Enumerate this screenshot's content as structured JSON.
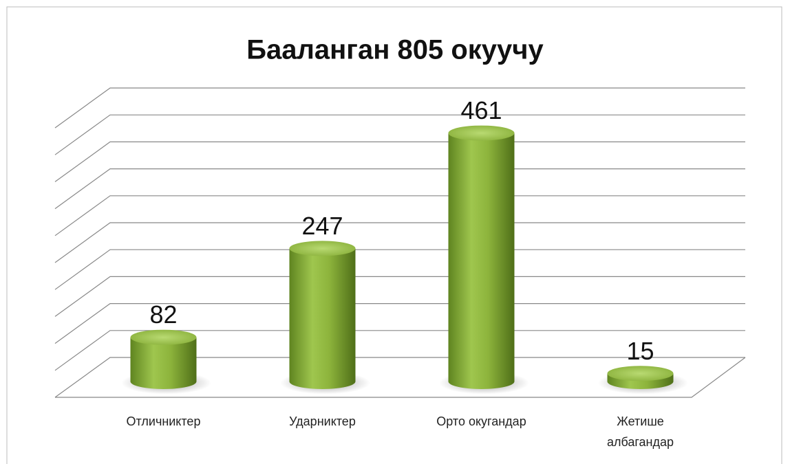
{
  "chart_data": {
    "type": "cylinder_bar",
    "title": "Бааланган 805 окуучу",
    "categories": [
      "Отличниктер",
      "Ударниктер",
      "Орто окугандар",
      "Жетише албагандар"
    ],
    "values": [
      82,
      247,
      461,
      15
    ],
    "color": "#8db43c",
    "ylim": [
      0,
      500
    ],
    "yticks": [
      0,
      50,
      100,
      150,
      200,
      250,
      300,
      350,
      400,
      450,
      500
    ],
    "grid": true
  }
}
